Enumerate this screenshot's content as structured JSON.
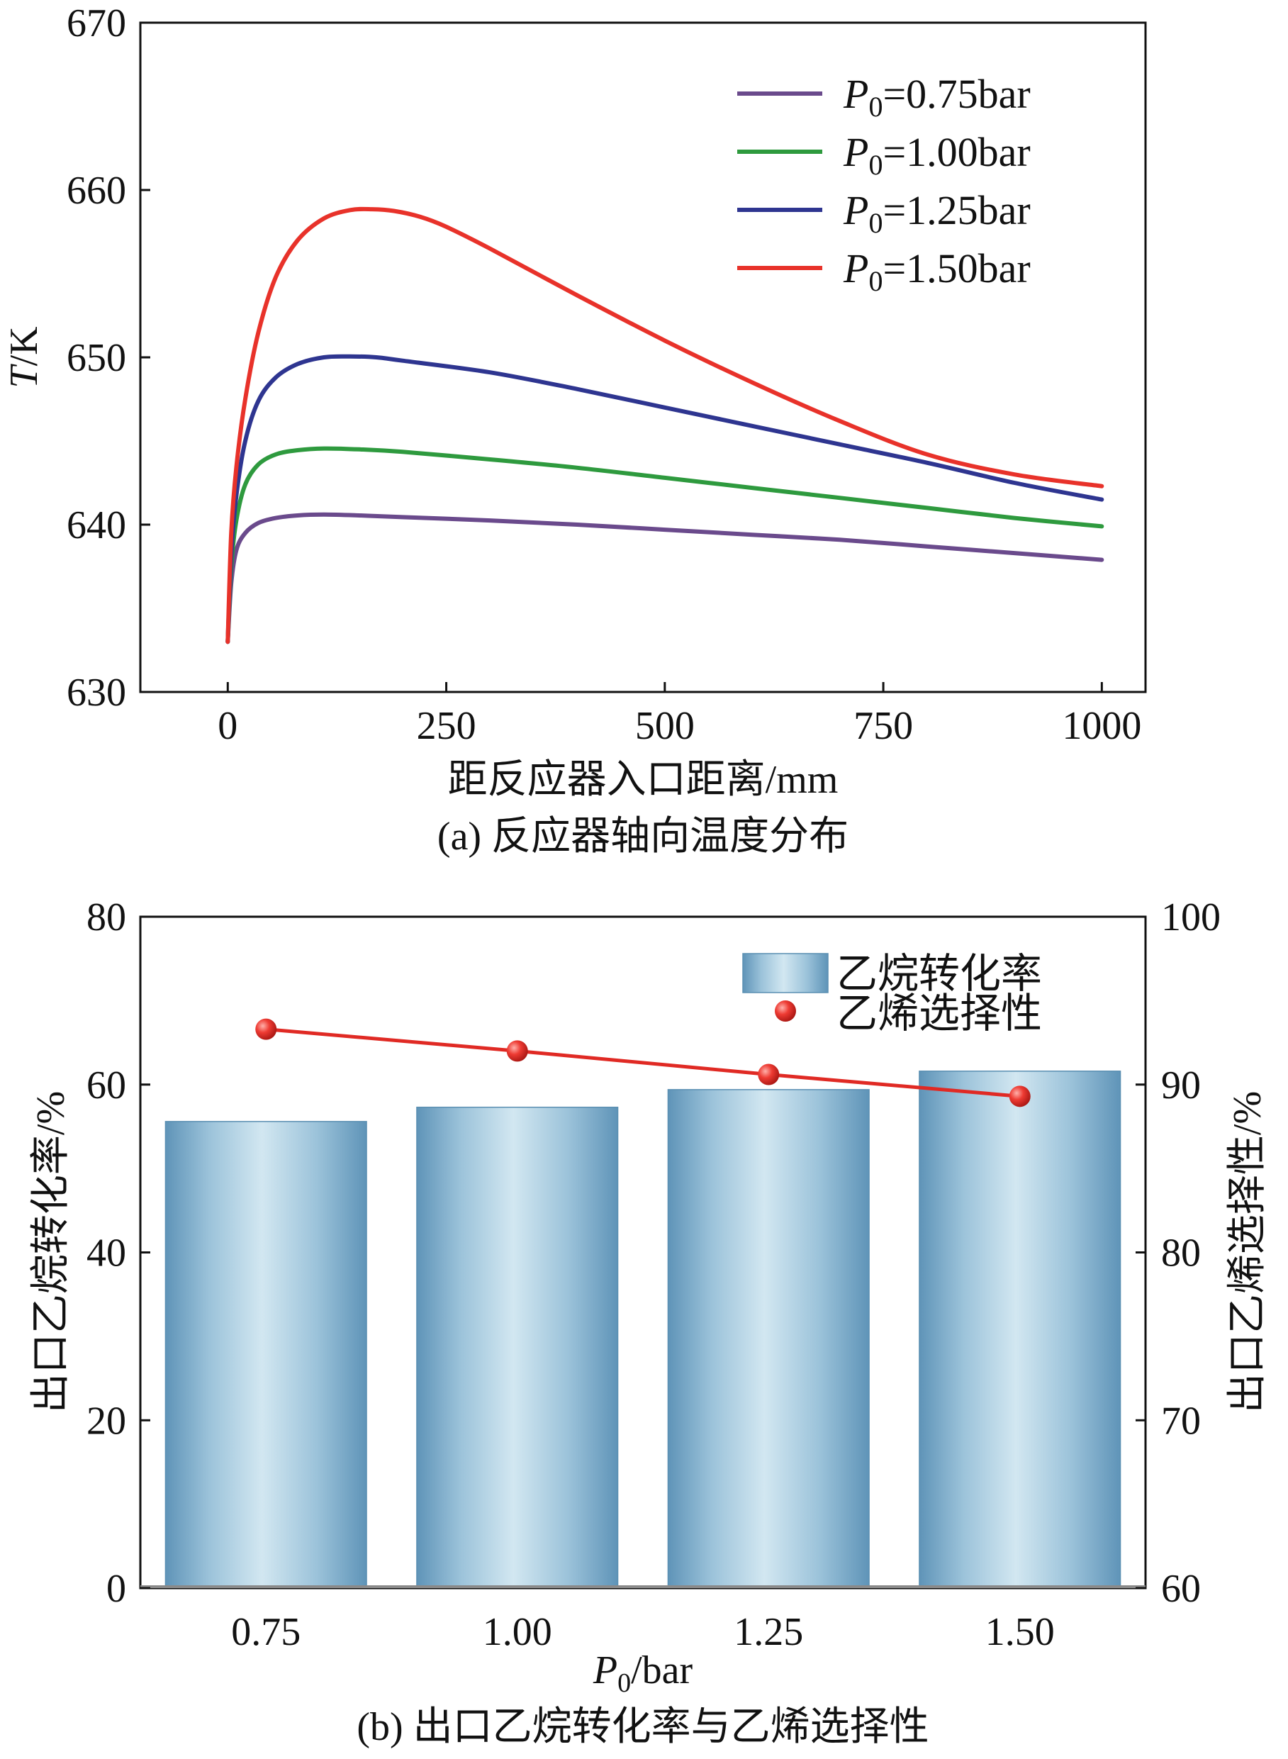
{
  "chart_data": [
    {
      "type": "line",
      "caption": "(a) 反应器轴向温度分布",
      "xlabel": "距反应器入口距离/mm",
      "ylabel_italic": "T",
      "ylabel_rest": "/K",
      "xlim": [
        -100,
        1050
      ],
      "ylim": [
        630,
        670
      ],
      "xticks": [
        0,
        250,
        500,
        750,
        1000
      ],
      "yticks": [
        630,
        640,
        650,
        660,
        670
      ],
      "legend_position": "top-right",
      "series": [
        {
          "name": "P0=0.75bar",
          "legend_sym": "P",
          "legend_sub": "0",
          "legend_val": "=0.75bar",
          "color": "#6a4a8c",
          "x": [
            0,
            4,
            10,
            20,
            35,
            55,
            80,
            110,
            150,
            200,
            300,
            400,
            500,
            600,
            700,
            800,
            900,
            1000
          ],
          "y": [
            633,
            636.5,
            638.5,
            639.5,
            640.1,
            640.4,
            640.55,
            640.6,
            640.55,
            640.45,
            640.25,
            640.0,
            639.7,
            639.4,
            639.1,
            638.7,
            638.3,
            637.9
          ]
        },
        {
          "name": "P0=1.00bar",
          "legend_sym": "P",
          "legend_sub": "0",
          "legend_val": "=1.00bar",
          "color": "#2e9a3e",
          "x": [
            0,
            4,
            10,
            20,
            35,
            55,
            80,
            110,
            150,
            200,
            300,
            400,
            500,
            600,
            700,
            800,
            900,
            1000
          ],
          "y": [
            633,
            637.5,
            640.3,
            642.4,
            643.6,
            644.2,
            644.45,
            644.55,
            644.5,
            644.35,
            643.9,
            643.4,
            642.8,
            642.2,
            641.6,
            641.0,
            640.4,
            639.9
          ]
        },
        {
          "name": "P0=1.25bar",
          "legend_sym": "P",
          "legend_sub": "0",
          "legend_val": "=1.25bar",
          "color": "#2e3590",
          "x": [
            0,
            4,
            10,
            20,
            35,
            55,
            80,
            110,
            140,
            170,
            200,
            300,
            400,
            500,
            600,
            700,
            800,
            900,
            1000
          ],
          "y": [
            633,
            638.2,
            641.8,
            645.0,
            647.4,
            648.8,
            649.6,
            650.0,
            650.05,
            650.0,
            649.8,
            649.1,
            648.1,
            647.0,
            645.9,
            644.8,
            643.7,
            642.5,
            641.5
          ]
        },
        {
          "name": "P0=1.50bar",
          "legend_sym": "P",
          "legend_sub": "0",
          "legend_val": "=1.50bar",
          "color": "#e8322a",
          "x": [
            0,
            4,
            10,
            20,
            35,
            55,
            80,
            110,
            140,
            165,
            190,
            220,
            250,
            300,
            400,
            500,
            600,
            700,
            800,
            900,
            1000
          ],
          "y": [
            633,
            639.5,
            643.5,
            647.5,
            651.5,
            654.8,
            657.0,
            658.3,
            658.8,
            658.85,
            658.75,
            658.4,
            657.8,
            656.5,
            653.7,
            651.0,
            648.5,
            646.2,
            644.2,
            643.0,
            642.3
          ]
        }
      ]
    },
    {
      "type": "bar",
      "caption": "(b) 出口乙烷转化率与乙烯选择性",
      "xlabel_italic": "P",
      "xlabel_sub": "0",
      "xlabel_rest": "/bar",
      "categories": [
        "0.75",
        "1.00",
        "1.25",
        "1.50"
      ],
      "ylabel_left": "出口乙烷转化率/%",
      "ylabel_right": "出口乙烯选择性/%",
      "ylim_left": [
        0,
        80
      ],
      "ylim_right": [
        60,
        100
      ],
      "yticks_left": [
        0,
        20,
        40,
        60,
        80
      ],
      "yticks_right": [
        60,
        70,
        80,
        90,
        100
      ],
      "legend_position": "top-right",
      "series": [
        {
          "name": "乙烷转化率",
          "kind": "bar",
          "axis": "left",
          "values": [
            55.6,
            57.3,
            59.4,
            61.6
          ],
          "color": "#7aaac8"
        },
        {
          "name": "乙烯选择性",
          "kind": "line-marker",
          "axis": "right",
          "values": [
            93.3,
            92.0,
            90.6,
            89.3
          ],
          "color": "#e02a24"
        }
      ]
    }
  ]
}
